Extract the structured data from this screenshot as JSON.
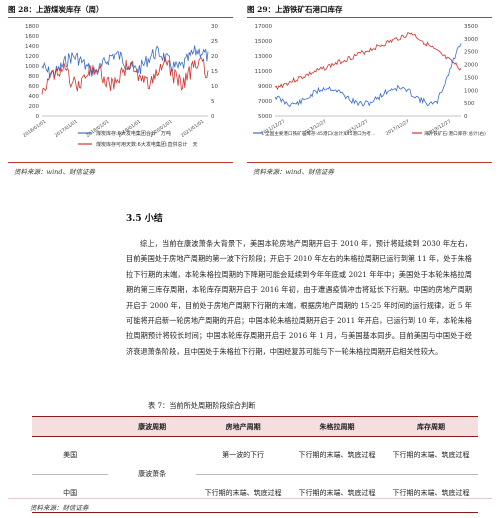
{
  "fig28": {
    "title": "图 28：上游煤炭库存（周）",
    "left_ticks": [
      "1800",
      "1600",
      "1400",
      "1200",
      "1000",
      "800",
      "600",
      "400",
      "200",
      "0"
    ],
    "right_ticks": [
      "30",
      "25",
      "20",
      "15",
      "10",
      "5",
      "0"
    ],
    "x_ticks": [
      "2016/01/01",
      "2017/01/01",
      "2018/01/01",
      "2019/01/01",
      "2020/01/01",
      "2021/01/01"
    ],
    "legend": [
      "煤炭库存:6大发电集团合计　万吨",
      "煤炭库存可用天数:6大发电集团:直供总计　天"
    ],
    "colors": {
      "blue": "#3b6cc9",
      "red": "#d0332e"
    },
    "source": "资料来源：wind、财信证券"
  },
  "fig29": {
    "title": "图 29：上游铁矿石港口库存",
    "left_ticks": [
      "17000",
      "15000",
      "13000",
      "11000",
      "9000",
      "7000",
      "5000"
    ],
    "right_ticks": [
      "3500",
      "3000",
      "2500",
      "2000",
      "1500",
      "1000",
      "500",
      "0"
    ],
    "x_ticks": [
      "2011/12/27",
      "2013/12/27",
      "2015/12/27",
      "2017/12/27",
      "2019/12/27"
    ],
    "legend": [
      "全国主要港口铁矿石库存:45港口(总计)(45港口为考...",
      "海外铁矿石:港口库存:总计(右)"
    ],
    "colors": {
      "blue": "#3b6cc9",
      "red": "#d0332e"
    },
    "source": "资料来源：wind、财信证券"
  },
  "section": {
    "title": "3.5 小结",
    "paragraph": "综上，当前在康波萧条大背景下，美国本轮房地产周期开启于 2010 年，预计将延续到 2030 年左右，目前美国处于房地产周期的第一波下行阶段；开启于 2010 年左右的朱格拉周期已运行到第 11 年，处于朱格拉下行期的末端，本轮朱格拉周期的下降期可能会延续到今年年底或 2021 年年中；美国处于本轮朱格拉周期的第三库存周期，本轮库存周期开启于 2016 年初，由于遭遇疫情冲击将延长下行期。中国的房地产周期开启于 2000 年，目前处于房地产周期下行期的末端，根据房地产周期的 15-25 年时间的运行规律，近 5 年可能将开启新一轮房地产周期的开启；中国本轮朱格拉周期开启于 2011 年开启，已运行到 10 年，本轮朱格拉周期预计将较长时间；中国本轮库存周期开启于 2016 年 1 月，与美国基本同步。目前美国与中国处于经济衰退萧条阶段，且中国处于朱格拉下行期，中国经复苏可能与下一轮朱格拉周期开启相关性较大。"
  },
  "table": {
    "title": "表 7：当前所处周期阶段综合判断",
    "headers": [
      "",
      "康波周期",
      "房地产周期",
      "朱格拉周期",
      "库存周期"
    ],
    "kangbo": "康波萧条",
    "rows": [
      {
        "country": "美国",
        "property": "第一波的下行",
        "juglar": "下行期的末端、筑底过程",
        "inventory": "下行期的末端、筑底过程"
      },
      {
        "country": "中国",
        "property": "下行期的末端、筑底过程",
        "juglar": "下行期的末端、筑底过程",
        "inventory": "下行期的末端、筑底过程"
      }
    ],
    "source": "资料来源：财信证券"
  }
}
